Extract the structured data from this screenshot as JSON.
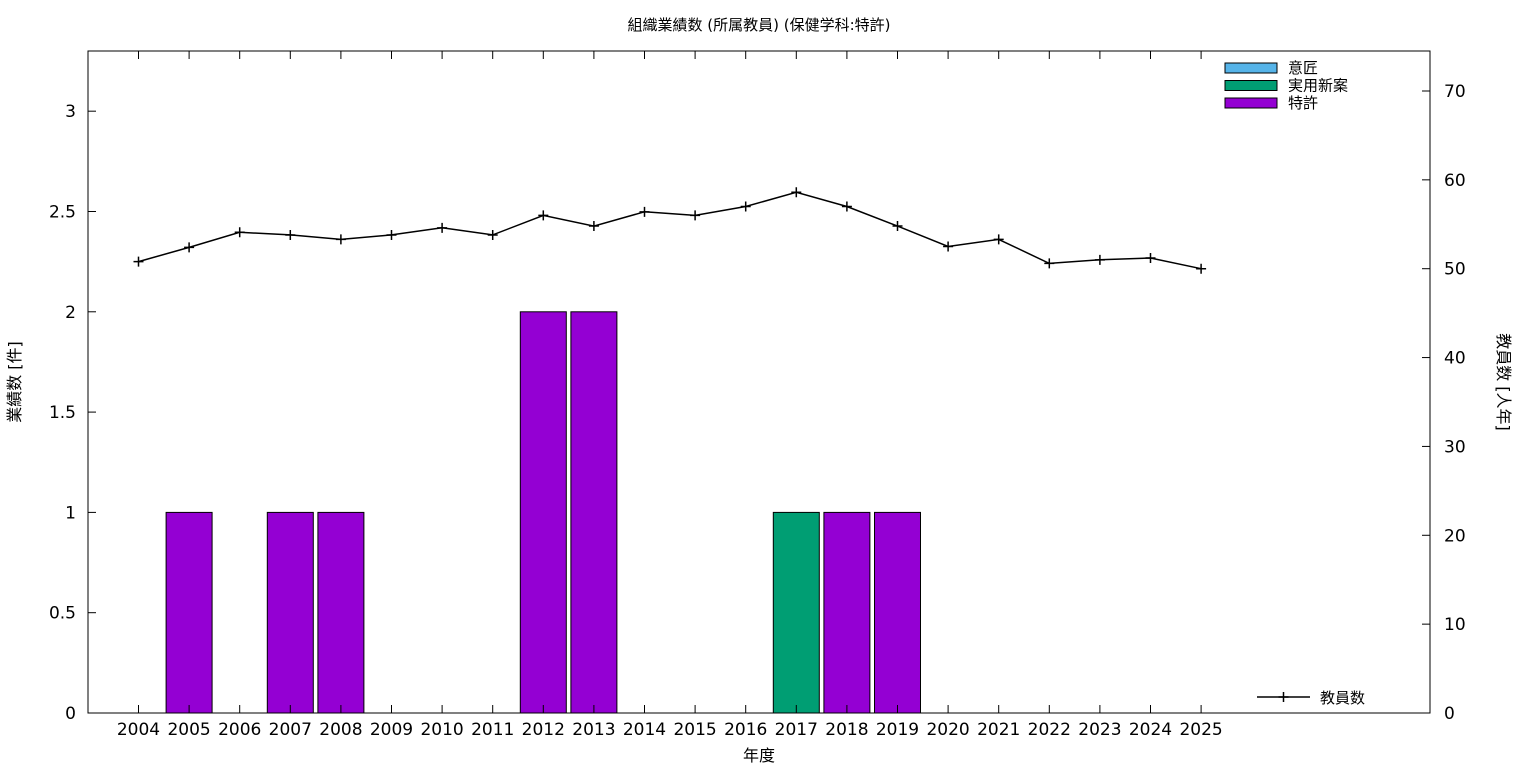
{
  "chart_data": {
    "type": "bar",
    "title": "組織業績数 (所属教員) (保健学科:特許)",
    "xlabel": "年度",
    "ylabel": "業績数 [件]",
    "y2label": "教員数 [人年]",
    "categories": [
      "2004",
      "2005",
      "2006",
      "2007",
      "2008",
      "2009",
      "2010",
      "2011",
      "2012",
      "2013",
      "2014",
      "2015",
      "2016",
      "2017",
      "2018",
      "2019",
      "2020",
      "2021",
      "2022",
      "2023",
      "2024",
      "2025"
    ],
    "ylim": [
      0,
      3.3
    ],
    "y2lim": [
      0,
      74.5
    ],
    "yticks": [
      "0",
      "0.5",
      "1",
      "1.5",
      "2",
      "2.5",
      "3"
    ],
    "y2ticks": [
      "0",
      "10",
      "20",
      "30",
      "40",
      "50",
      "60",
      "70"
    ],
    "series": [
      {
        "name": "意匠",
        "color": "#56b4e9",
        "values": [
          0,
          0,
          0,
          0,
          0,
          0,
          0,
          0,
          0,
          0,
          0,
          0,
          0,
          0,
          0,
          0,
          0,
          0,
          0,
          0,
          0,
          0
        ]
      },
      {
        "name": "実用新案",
        "color": "#009e73",
        "values": [
          0,
          0,
          0,
          0,
          0,
          0,
          0,
          0,
          0,
          0,
          0,
          0,
          0,
          1,
          0,
          0,
          0,
          0,
          0,
          0,
          0,
          0
        ]
      },
      {
        "name": "特許",
        "color": "#9400d3",
        "values": [
          0,
          1,
          0,
          1,
          1,
          0,
          0,
          0,
          2,
          2,
          0,
          0,
          0,
          0,
          1,
          1,
          0,
          0,
          0,
          0,
          0,
          0
        ]
      }
    ],
    "line_series": {
      "name": "教員数",
      "axis": "y2",
      "color": "#000000",
      "values": [
        50.8,
        52.4,
        54.1,
        53.8,
        53.3,
        53.8,
        54.6,
        53.8,
        56.0,
        54.8,
        56.4,
        56.0,
        57.0,
        58.6,
        57.0,
        54.8,
        52.5,
        53.3,
        50.6,
        51.0,
        51.2,
        50.0
      ]
    },
    "legend": "top-right (bars), bottom-right (line)",
    "grid": false
  }
}
